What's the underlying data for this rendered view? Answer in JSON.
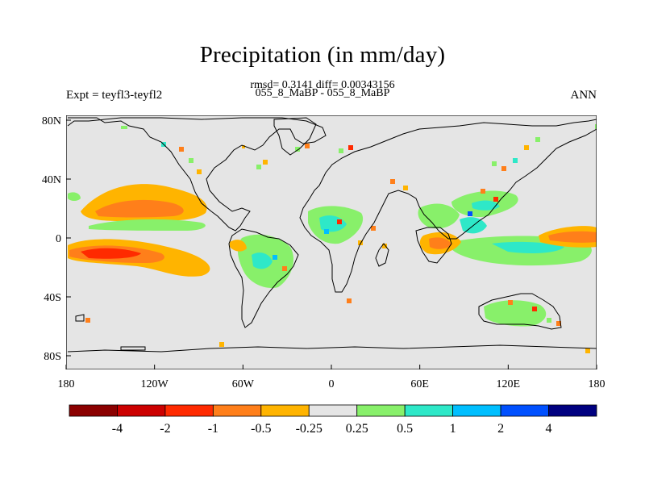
{
  "title": "Precipitation (in mm/day)",
  "stats_line": "rmsd= 0.3141 diff= 0.00343156",
  "period_line": "055_8_MaBP - 055_8_MaBP",
  "experiment_label": "Expt = teyfl3-teyfl2",
  "season_label": "ANN",
  "map": {
    "background_color": "#e5e5e5",
    "lon_ticks": [
      "180",
      "120W",
      "60W",
      "0",
      "60E",
      "120E",
      "180"
    ],
    "lat_ticks": [
      "80N",
      "40N",
      "0",
      "40S",
      "80S"
    ]
  },
  "colorbar": {
    "colors": [
      "#8b0000",
      "#cc0000",
      "#ff2a00",
      "#ff7f1a",
      "#ffb400",
      "#e5e5e5",
      "#88f06a",
      "#2ee8c8",
      "#00bfff",
      "#0050ff",
      "#000080"
    ],
    "labels": [
      "-4",
      "-2",
      "-1",
      "-0.5",
      "-0.25",
      "0.25",
      "0.5",
      "1",
      "2",
      "4"
    ]
  }
}
